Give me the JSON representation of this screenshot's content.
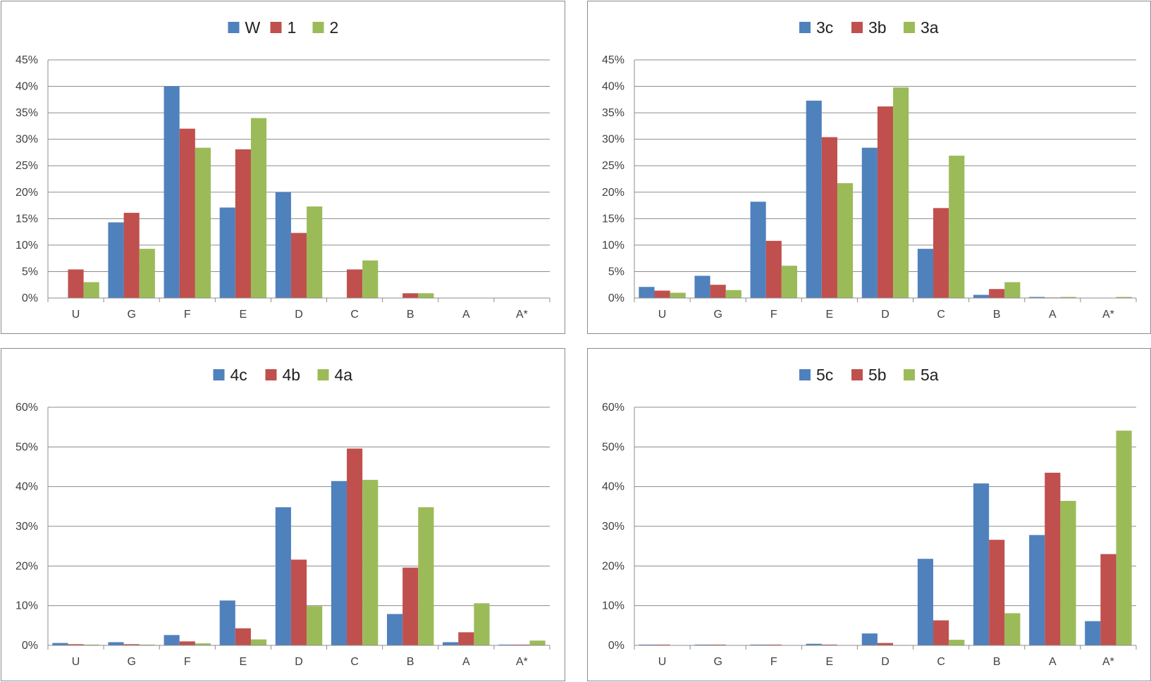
{
  "colors": {
    "series": [
      "#4f81bd",
      "#c0504d",
      "#9bbb59"
    ],
    "gridline": "#8c8c8c",
    "axis": "#8c8c8c",
    "tick_text": "#404040",
    "border": "#8c8c8c"
  },
  "chart_data": [
    {
      "type": "bar",
      "categories": [
        "U",
        "G",
        "F",
        "E",
        "D",
        "C",
        "B",
        "A",
        "A*"
      ],
      "series": [
        {
          "name": "W",
          "values": [
            0,
            14.3,
            40.0,
            17.1,
            20.0,
            0,
            0,
            0,
            0
          ]
        },
        {
          "name": "1",
          "values": [
            5.4,
            16.1,
            32.0,
            28.1,
            12.3,
            5.4,
            0.9,
            0,
            0
          ]
        },
        {
          "name": "2",
          "values": [
            3.0,
            9.3,
            28.4,
            34.0,
            17.3,
            7.1,
            0.9,
            0,
            0
          ]
        }
      ],
      "yticks": [
        "0%",
        "5%",
        "10%",
        "15%",
        "20%",
        "25%",
        "30%",
        "35%",
        "40%",
        "45%"
      ],
      "ylim": [
        0,
        45
      ],
      "grid": true,
      "legend": "top"
    },
    {
      "type": "bar",
      "categories": [
        "U",
        "G",
        "F",
        "E",
        "D",
        "C",
        "B",
        "A",
        "A*"
      ],
      "series": [
        {
          "name": "3c",
          "values": [
            2.1,
            4.2,
            18.2,
            37.3,
            28.4,
            9.3,
            0.6,
            0.2,
            0
          ]
        },
        {
          "name": "3b",
          "values": [
            1.4,
            2.5,
            10.8,
            30.4,
            36.2,
            17.0,
            1.7,
            0.1,
            0
          ]
        },
        {
          "name": "3a",
          "values": [
            1.0,
            1.5,
            6.1,
            21.7,
            39.8,
            26.9,
            3.0,
            0.2,
            0.2
          ]
        }
      ],
      "yticks": [
        "0%",
        "5%",
        "10%",
        "15%",
        "20%",
        "25%",
        "30%",
        "35%",
        "40%",
        "45%"
      ],
      "ylim": [
        0,
        45
      ],
      "grid": true,
      "legend": "top"
    },
    {
      "type": "bar",
      "categories": [
        "U",
        "G",
        "F",
        "E",
        "D",
        "C",
        "B",
        "A",
        "A*"
      ],
      "series": [
        {
          "name": "4c",
          "values": [
            0.6,
            0.8,
            2.6,
            11.3,
            34.8,
            41.4,
            7.9,
            0.8,
            0.2
          ]
        },
        {
          "name": "4b",
          "values": [
            0.3,
            0.3,
            1.0,
            4.3,
            21.6,
            49.6,
            19.6,
            3.3,
            0.2
          ]
        },
        {
          "name": "4a",
          "values": [
            0.2,
            0.2,
            0.5,
            1.5,
            9.9,
            41.7,
            34.8,
            10.6,
            1.2
          ]
        }
      ],
      "yticks": [
        "0%",
        "10%",
        "20%",
        "30%",
        "40%",
        "50%",
        "60%"
      ],
      "ylim": [
        0,
        60
      ],
      "grid": true,
      "legend": "top"
    },
    {
      "type": "bar",
      "categories": [
        "U",
        "G",
        "F",
        "E",
        "D",
        "C",
        "B",
        "A",
        "A*"
      ],
      "series": [
        {
          "name": "5c",
          "values": [
            0.2,
            0.2,
            0.2,
            0.4,
            3.0,
            21.8,
            40.8,
            27.8,
            6.1
          ]
        },
        {
          "name": "5b",
          "values": [
            0.2,
            0.2,
            0.2,
            0.2,
            0.6,
            6.3,
            26.6,
            43.5,
            23.0
          ]
        },
        {
          "name": "5a",
          "values": [
            0,
            0,
            0,
            0,
            0.1,
            1.4,
            8.1,
            36.4,
            54.1
          ]
        }
      ],
      "yticks": [
        "0%",
        "10%",
        "20%",
        "30%",
        "40%",
        "50%",
        "60%"
      ],
      "ylim": [
        0,
        60
      ],
      "grid": true,
      "legend": "top"
    }
  ]
}
